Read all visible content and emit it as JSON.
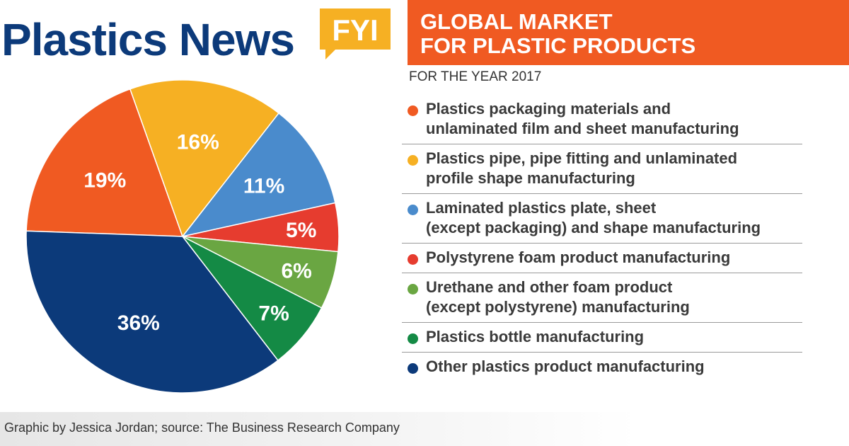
{
  "brand": {
    "name": "Plastics News",
    "tag": "FYI"
  },
  "title_lines": [
    "GLOBAL MARKET",
    "FOR PLASTIC PRODUCTS"
  ],
  "subtitle": "FOR THE YEAR 2017",
  "credit": "Graphic by Jessica Jordan; source: The Business Research Company",
  "colors": {
    "orange": "#f05a22",
    "yellow": "#f6b023",
    "blue": "#4a8bcc",
    "red": "#e63c2f",
    "light_green": "#6aa642",
    "green": "#148a45",
    "navy": "#0c3a7a"
  },
  "chart_data": {
    "type": "pie",
    "values": [
      19,
      16,
      11,
      5,
      6,
      7,
      36
    ],
    "data_labels": [
      "19%",
      "16%",
      "11%",
      "5%",
      "6%",
      "7%",
      "36%"
    ],
    "categories": [
      "Plastics packaging materials and unlaminated film and sheet manufacturing",
      "Plastics pipe, pipe fitting and unlaminated profile shape manufacturing",
      "Laminated plastics plate, sheet (except packaging) and shape manufacturing",
      "Polystyrene foam product manufacturing",
      "Urethane and other foam product (except polystyrene) manufacturing",
      "Plastics bottle manufacturing",
      "Other plastics product manufacturing"
    ],
    "legend_lines": [
      [
        "Plastics packaging materials and",
        "unlaminated film and sheet manufacturing"
      ],
      [
        "Plastics pipe, pipe fitting and unlaminated",
        "profile shape manufacturing"
      ],
      [
        "Laminated plastics plate, sheet",
        "(except packaging) and shape manufacturing"
      ],
      [
        "Polystyrene foam product manufacturing"
      ],
      [
        "Urethane and other foam product",
        "(except polystyrene) manufacturing"
      ],
      [
        "Plastics bottle manufacturing"
      ],
      [
        "Other plastics product manufacturing"
      ]
    ],
    "slice_colors": [
      "#f05a22",
      "#f6b023",
      "#4a8bcc",
      "#e63c2f",
      "#6aa642",
      "#148a45",
      "#0c3a7a"
    ],
    "legend_position": "right"
  }
}
